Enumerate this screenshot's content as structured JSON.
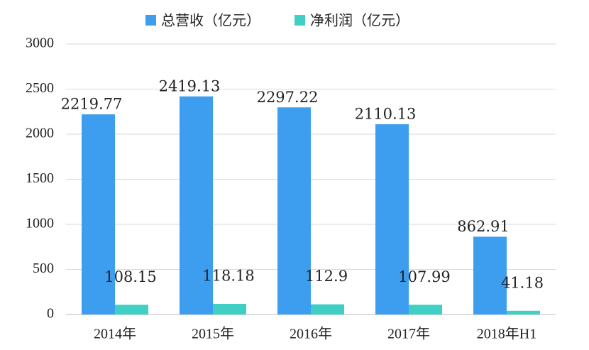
{
  "chart_data": {
    "type": "bar",
    "categories": [
      "2014年",
      "2015年",
      "2016年",
      "2017年",
      "2018年H1"
    ],
    "series": [
      {
        "name": "总营收（亿元）",
        "color": "#3d9ef0",
        "values": [
          2219.77,
          2419.13,
          2297.22,
          2110.13,
          862.91
        ]
      },
      {
        "name": "净利润（亿元）",
        "color": "#40cfc4",
        "values": [
          108.15,
          118.18,
          112.9,
          107.99,
          41.18
        ]
      }
    ],
    "ylim": [
      0,
      3000
    ],
    "yticks": [
      0,
      500,
      1000,
      1500,
      2000,
      2500,
      3000
    ],
    "grid": true,
    "legend": "top"
  }
}
